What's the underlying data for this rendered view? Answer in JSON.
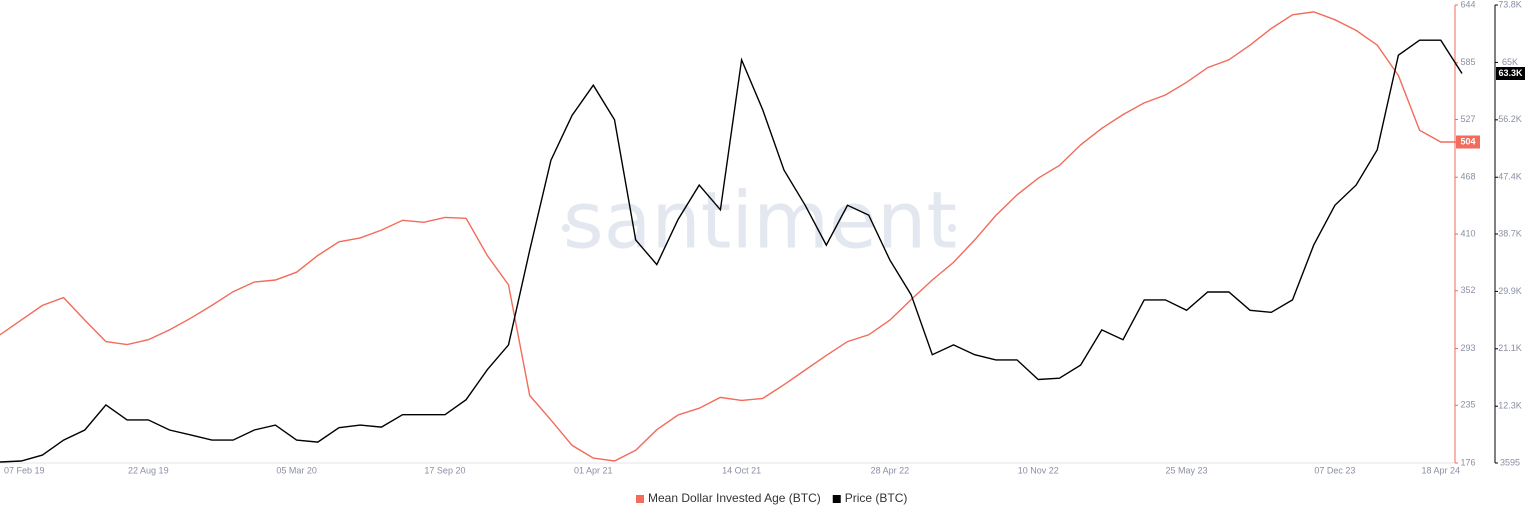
{
  "chart_data": {
    "type": "line",
    "watermark": "santiment",
    "categories": [
      "07 Feb 19",
      null,
      null,
      null,
      null,
      null,
      null,
      "22 Aug 19",
      null,
      null,
      null,
      null,
      null,
      null,
      "05 Mar 20",
      null,
      null,
      null,
      null,
      null,
      null,
      "17 Sep 20",
      null,
      null,
      null,
      null,
      null,
      null,
      "01 Apr 21",
      null,
      null,
      null,
      null,
      null,
      null,
      "14 Oct 21",
      null,
      null,
      null,
      null,
      null,
      null,
      "28 Apr 22",
      null,
      null,
      null,
      null,
      null,
      null,
      "10 Nov 22",
      null,
      null,
      null,
      null,
      null,
      null,
      "25 May 23",
      null,
      null,
      null,
      null,
      null,
      null,
      "07 Dec 23",
      null,
      null,
      null,
      null,
      "18 Apr 24",
      null
    ],
    "series": [
      {
        "name": "Mean Dollar Invested Age (BTC)",
        "color": "#f26b5b",
        "axis": "y",
        "values": [
          307,
          322,
          337,
          345,
          322,
          300,
          297,
          302,
          312,
          324,
          337,
          351,
          361,
          363,
          371,
          388,
          402,
          406,
          414,
          424,
          422,
          427,
          426,
          388,
          358,
          245,
          220,
          194,
          181,
          178,
          189,
          210,
          225,
          232,
          243,
          240,
          242,
          256,
          271,
          286,
          300,
          307,
          322,
          343,
          363,
          381,
          404,
          429,
          450,
          467,
          480,
          501,
          518,
          532,
          544,
          552,
          565,
          580,
          588,
          603,
          620,
          634,
          637,
          629,
          618,
          603,
          572,
          516,
          504,
          504
        ]
      },
      {
        "name": "Price (BTC)",
        "color": "#000000",
        "axis": "y2",
        "values": [
          3750,
          3900,
          4800,
          7100,
          8650,
          12500,
          10200,
          10200,
          8650,
          7900,
          7100,
          7100,
          8650,
          9400,
          7100,
          6800,
          9000,
          9400,
          9100,
          11000,
          11000,
          11000,
          13300,
          17900,
          21700,
          36200,
          50000,
          56900,
          61500,
          56200,
          37800,
          34000,
          40900,
          46200,
          42400,
          65400,
          57700,
          48500,
          43100,
          37000,
          43100,
          41600,
          34700,
          29400,
          20200,
          21700,
          20200,
          19400,
          19400,
          16400,
          16600,
          18600,
          24000,
          22500,
          28600,
          28600,
          27000,
          29800,
          29800,
          27000,
          26700,
          28600,
          37000,
          43100,
          46200,
          51600,
          66100,
          68400,
          68400,
          63300
        ],
        "value_labels": [
          null,
          null,
          null,
          null,
          null,
          null,
          null,
          null,
          null,
          null,
          null,
          null,
          null,
          null,
          null,
          null,
          null,
          null,
          null,
          null,
          null,
          null,
          null,
          null,
          null,
          null,
          null,
          null,
          null,
          null,
          null,
          null,
          null,
          null,
          null,
          null,
          null,
          null,
          null,
          null,
          null,
          null,
          null,
          null,
          null,
          null,
          null,
          null,
          null,
          null,
          null,
          null,
          null,
          null,
          null,
          null,
          null,
          null,
          null,
          null,
          null,
          null,
          null,
          null,
          null,
          null,
          null,
          null,
          null,
          "63.3K"
        ]
      }
    ],
    "ylim": [
      176,
      644
    ],
    "yticks": [
      176,
      235,
      293,
      352,
      410,
      468,
      527,
      585,
      644
    ],
    "y2lim": [
      3595,
      73800
    ],
    "y2ticks": [
      3595,
      {
        "value": 12300,
        "label": "12.3K"
      },
      {
        "value": 21100,
        "label": "21.1K"
      },
      {
        "value": 29900,
        "label": "29.9K"
      },
      {
        "value": 38700,
        "label": "38.7K"
      },
      {
        "value": 47400,
        "label": "47.4K"
      },
      {
        "value": 56200,
        "label": "56.2K"
      },
      {
        "value": 65000,
        "label": "65K"
      },
      {
        "value": 73800,
        "label": "73.8K"
      }
    ],
    "legend": "bottom"
  }
}
